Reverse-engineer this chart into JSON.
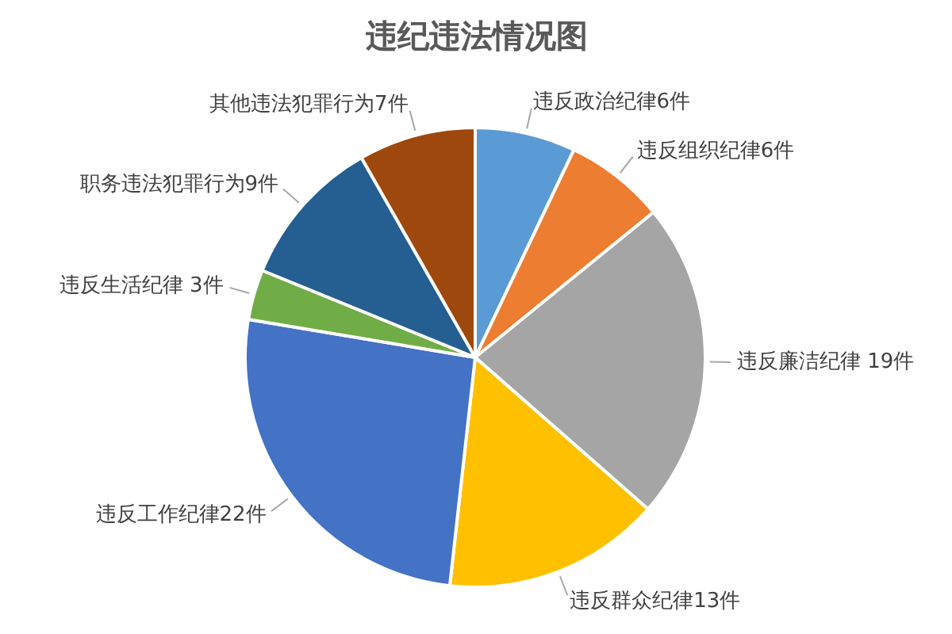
{
  "chart_data": {
    "type": "pie",
    "title": "违纪违法情况图",
    "categories": [
      "违反政治纪律6件",
      "违反组织纪律6件",
      "违反廉洁纪律 19件",
      "违反群众纪律13件",
      "违反工作纪律22件",
      "违反生活纪律 3件",
      "职务违法犯罪行为9件",
      "其他违法犯罪行为7件"
    ],
    "values": [
      6,
      6,
      19,
      13,
      22,
      3,
      9,
      7
    ],
    "colors": [
      "#5b9bd5",
      "#ed7d31",
      "#a5a5a5",
      "#ffc000",
      "#4472c4",
      "#70ad47",
      "#255e91",
      "#9e480e"
    ]
  }
}
